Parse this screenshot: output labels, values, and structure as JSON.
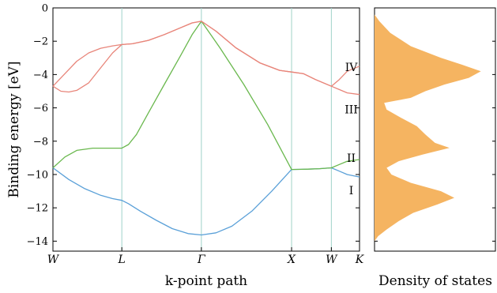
{
  "chart_data": [
    {
      "type": "line",
      "xlabel": "k-point path",
      "ylabel": "Binding energy [eV]",
      "ylim": [
        -14.6,
        0
      ],
      "y_ticks": [
        0,
        -2,
        -4,
        -6,
        -8,
        -10,
        -12,
        -14
      ],
      "y_tick_labels": [
        "0",
        "−2",
        "−4",
        "−6",
        "−8",
        "−10",
        "−12",
        "−14"
      ],
      "kpoints": [
        {
          "label": "W",
          "x": 0.0
        },
        {
          "label": "L",
          "x": 0.866
        },
        {
          "label": "Γ",
          "x": 1.866
        },
        {
          "label": "X",
          "x": 3.0
        },
        {
          "label": "W",
          "x": 3.5
        },
        {
          "label": "K",
          "x": 3.854
        }
      ],
      "grid": "vertical lines at high-symmetry k-points",
      "band_labels": [
        {
          "text": "IV",
          "x": 3.75,
          "y": -3.55
        },
        {
          "text": "III",
          "x": 3.75,
          "y": -6.1
        },
        {
          "text": "II",
          "x": 3.75,
          "y": -9.0
        },
        {
          "text": "I",
          "x": 3.75,
          "y": -10.95
        }
      ],
      "series": [
        {
          "color": "#5aa0d8",
          "x": [
            0,
            0.2,
            0.4,
            0.6,
            0.75,
            0.866,
            0.95,
            1.1,
            1.3,
            1.5,
            1.7,
            1.866,
            2.05,
            2.25,
            2.5,
            2.75,
            3.0,
            3.2,
            3.35,
            3.5,
            3.6,
            3.7,
            3.854
          ],
          "y": [
            -9.6,
            -10.3,
            -10.85,
            -11.25,
            -11.45,
            -11.55,
            -11.75,
            -12.2,
            -12.75,
            -13.25,
            -13.55,
            -13.63,
            -13.5,
            -13.1,
            -12.2,
            -11.0,
            -9.7,
            -9.68,
            -9.65,
            -9.6,
            -9.8,
            -10.0,
            -10.15
          ]
        },
        {
          "color": "#6ab84e",
          "x": [
            0,
            0.15,
            0.3,
            0.5,
            0.7,
            0.866,
            0.95,
            1.05,
            1.2,
            1.4,
            1.6,
            1.75,
            1.866,
            2.1,
            2.4,
            2.7,
            3.0,
            3.2,
            3.35,
            3.5,
            3.6,
            3.7,
            3.854
          ],
          "y": [
            -9.6,
            -8.95,
            -8.55,
            -8.42,
            -8.42,
            -8.42,
            -8.2,
            -7.6,
            -6.3,
            -4.6,
            -2.9,
            -1.6,
            -0.8,
            -2.4,
            -4.6,
            -7.0,
            -9.7,
            -9.68,
            -9.65,
            -9.6,
            -9.4,
            -9.2,
            -9.1
          ]
        },
        {
          "color": "#e8857a",
          "x": [
            0,
            0.15,
            0.3,
            0.45,
            0.6,
            0.75,
            0.866,
            1.0,
            1.2,
            1.4,
            1.6,
            1.75,
            1.866,
            2.05,
            2.3,
            2.6,
            2.85,
            3.0,
            3.15,
            3.3,
            3.5,
            3.6,
            3.7,
            3.854
          ],
          "y": [
            -4.7,
            -3.95,
            -3.2,
            -2.7,
            -2.42,
            -2.28,
            -2.2,
            -2.15,
            -1.95,
            -1.6,
            -1.2,
            -0.9,
            -0.8,
            -1.4,
            -2.4,
            -3.3,
            -3.75,
            -3.85,
            -3.95,
            -4.3,
            -4.7,
            -4.3,
            -3.8,
            -3.5
          ]
        },
        {
          "color": "#e8857a",
          "x": [
            0,
            0.1,
            0.2,
            0.3,
            0.45,
            0.6,
            0.75,
            0.866,
            1.0,
            1.2,
            1.4,
            1.6,
            1.75,
            1.866,
            2.05,
            2.3,
            2.6,
            2.85,
            3.0,
            3.15,
            3.3,
            3.5,
            3.6,
            3.7,
            3.854
          ],
          "y": [
            -4.7,
            -5.0,
            -5.05,
            -4.95,
            -4.5,
            -3.6,
            -2.7,
            -2.2,
            -2.15,
            -1.95,
            -1.6,
            -1.2,
            -0.9,
            -0.8,
            -1.4,
            -2.4,
            -3.3,
            -3.75,
            -3.85,
            -3.95,
            -4.3,
            -4.7,
            -4.9,
            -5.1,
            -5.2
          ]
        }
      ]
    },
    {
      "type": "area",
      "xlabel": "Density of states",
      "orientation": "horizontal",
      "color": "#f5b461",
      "ylim": [
        -14.6,
        0
      ],
      "energy": [
        -0.4,
        -0.8,
        -1.5,
        -2.3,
        -3.0,
        -3.4,
        -3.8,
        -4.2,
        -4.6,
        -5.0,
        -5.4,
        -5.7,
        -6.1,
        -6.6,
        -7.1,
        -7.6,
        -8.1,
        -8.4,
        -8.8,
        -9.2,
        -9.6,
        -10.0,
        -10.5,
        -11.0,
        -11.4,
        -11.8,
        -12.3,
        -12.8,
        -13.3,
        -13.7,
        -14.0
      ],
      "dos": [
        0.0,
        0.04,
        0.13,
        0.3,
        0.55,
        0.72,
        0.88,
        0.78,
        0.58,
        0.42,
        0.3,
        0.08,
        0.1,
        0.22,
        0.35,
        0.42,
        0.5,
        0.62,
        0.4,
        0.2,
        0.1,
        0.14,
        0.3,
        0.55,
        0.66,
        0.52,
        0.32,
        0.2,
        0.1,
        0.03,
        0.0
      ]
    }
  ]
}
